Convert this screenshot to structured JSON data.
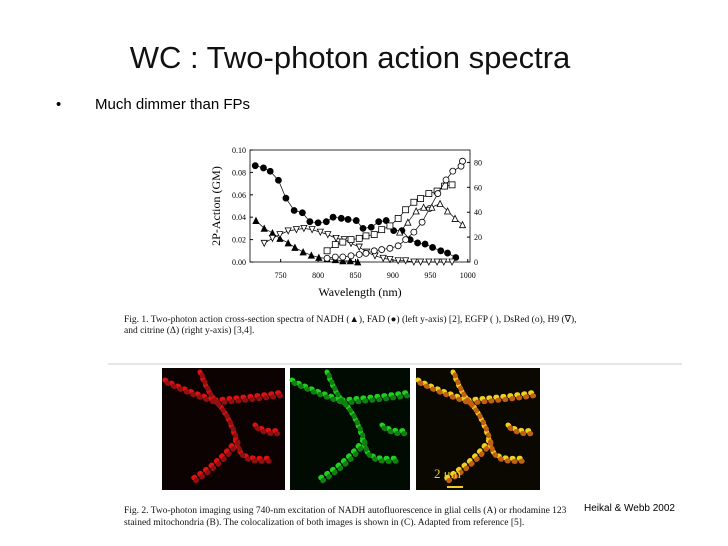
{
  "title": "WC : Two-photon action spectra",
  "bullets": [
    "Much dimmer than FPs"
  ],
  "chart_data": {
    "type": "line",
    "xlabel": "Wavelength (nm)",
    "ylabel": "2P-Action (GM)",
    "xlim": [
      709,
      1003
    ],
    "xticks": [
      750,
      800,
      850,
      900,
      950,
      1000
    ],
    "ylim": [
      0,
      0.1
    ],
    "yticks": [
      {
        "value": 0,
        "label": "0.00"
      },
      {
        "value": 0.02,
        "label": "0.02"
      },
      {
        "value": 0.04,
        "label": "0.04"
      },
      {
        "value": 0.06,
        "label": "0.06"
      },
      {
        "value": 0.08,
        "label": "0.08"
      },
      {
        "value": 0.1,
        "label": "0.10"
      }
    ],
    "y2lim": [
      0,
      90
    ],
    "y2ticks": [
      0,
      20,
      40,
      60,
      80
    ],
    "series": [
      {
        "marker": "circle",
        "filled": true,
        "color": "#000000",
        "x": [
          716,
          727,
          736,
          747,
          757,
          768,
          779,
          789,
          800,
          811,
          820,
          831,
          840,
          851,
          860,
          871,
          881,
          891,
          901,
          912,
          923,
          933,
          943,
          953,
          964,
          973,
          984
        ],
        "values": [
          0.086,
          0.084,
          0.081,
          0.073,
          0.057,
          0.046,
          0.044,
          0.036,
          0.035,
          0.036,
          0.04,
          0.039,
          0.038,
          0.037,
          0.03,
          0.031,
          0.036,
          0.037,
          0.028,
          0.028,
          0.02,
          0.017,
          0.016,
          0.013,
          0.01,
          0.008,
          0.004
        ]
      },
      {
        "marker": "triangle-up",
        "filled": true,
        "color": "#000000",
        "x": [
          717,
          728,
          739,
          749,
          760,
          769,
          780,
          791,
          801,
          812,
          823,
          833,
          843,
          853
        ],
        "values": [
          0.037,
          0.03,
          0.026,
          0.021,
          0.017,
          0.013,
          0.009,
          0.006,
          0.004,
          0.003,
          0.002,
          0.001,
          0.001,
          0
        ]
      },
      {
        "marker": "triangle-down",
        "filled": false,
        "color": "#000000",
        "axis": "y2",
        "x": [
          728,
          739,
          749,
          760,
          771,
          781,
          792,
          803,
          813,
          824,
          835,
          844,
          855,
          865,
          876,
          887,
          896,
          907,
          917,
          928,
          937,
          948,
          959,
          968,
          979
        ],
        "values": [
          15,
          19,
          22,
          25,
          26,
          27,
          26,
          24,
          22,
          19,
          18,
          15,
          12,
          8,
          5,
          3,
          2,
          1,
          1,
          0,
          0,
          0,
          0,
          0,
          0
        ]
      },
      {
        "marker": "square",
        "filled": false,
        "color": "#000000",
        "axis": "y2",
        "x": [
          812,
          823,
          833,
          844,
          855,
          864,
          875,
          885,
          896,
          907,
          917,
          928,
          937,
          948,
          959,
          969,
          979
        ],
        "values": [
          9,
          14,
          16,
          18,
          19,
          21,
          22,
          26,
          29,
          35,
          42,
          48,
          51,
          55,
          57,
          61,
          62
        ]
      },
      {
        "marker": "circle",
        "filled": false,
        "color": "#000000",
        "axis": "y2",
        "x": [
          812,
          823,
          833,
          844,
          855,
          864,
          875,
          885,
          896,
          907,
          917,
          928,
          939,
          949,
          960,
          971,
          980,
          991,
          993
        ],
        "values": [
          3,
          4,
          4,
          5,
          6,
          7,
          9,
          10,
          11,
          13,
          18,
          24,
          32,
          43,
          55,
          66,
          73,
          77,
          81
        ]
      },
      {
        "marker": "triangle-up",
        "filled": false,
        "color": "#000000",
        "axis": "y2",
        "x": [
          909,
          920,
          931,
          941,
          952,
          963,
          973,
          983,
          993
        ],
        "values": [
          24,
          32,
          41,
          44,
          44,
          47,
          41,
          35,
          30
        ]
      }
    ]
  },
  "figure1_caption": [
    "Fig. 1. Two-photon action cross-section spectra of NADH (▲), FAD (●) (left y-axis) [2], EGFP ( ), DsRed (o), H9 (∇),",
    "and citrine (Δ) (right y-axis) [3,4]."
  ],
  "scale_bar": "2 μm",
  "figure2_caption": [
    "Fig. 2. Two-photon imaging using 740-nm excitation of NADH autofluorescence in glial cells (A) or rhodamine 123",
    "stained mitochondria (B). The colocalization of both images is shown in (C). Adapted from reference [5]."
  ],
  "credit": "Heikal & Webb 2002"
}
